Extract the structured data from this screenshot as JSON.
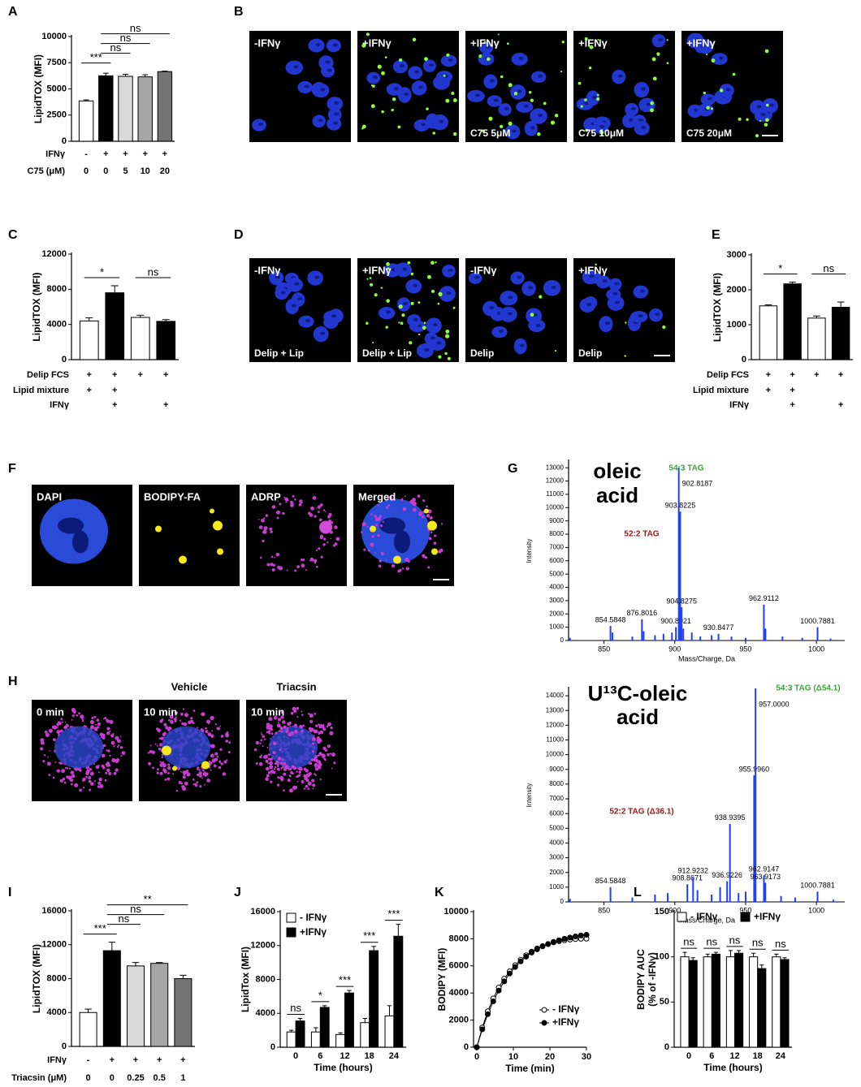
{
  "chart_data": [
    {
      "panel": "A",
      "type": "bar",
      "ylabel": "LipidTOX (MFI)",
      "ylim": [
        0,
        10000
      ],
      "yticks": [
        0,
        2500,
        5000,
        7500,
        10000
      ],
      "values": [
        3850,
        6250,
        6200,
        6150,
        6650
      ],
      "errors": [
        100,
        250,
        200,
        200,
        50
      ],
      "colors": [
        "#ffffff",
        "#000000",
        "#d9d9d9",
        "#a6a6a6",
        "#737373"
      ],
      "conditions": [
        {
          "label": "IFNγ",
          "values": [
            "-",
            "+",
            "+",
            "+",
            "+"
          ]
        },
        {
          "label": "C75 (μM)",
          "values": [
            "0",
            "0",
            "5",
            "10",
            "20"
          ]
        }
      ],
      "significance": [
        {
          "from": 0,
          "to": 1,
          "label": "***"
        },
        {
          "from": 1,
          "to": 2,
          "label": "ns"
        },
        {
          "from": 1,
          "to": 3,
          "label": "ns"
        },
        {
          "from": 1,
          "to": 4,
          "label": "ns"
        }
      ]
    },
    {
      "panel": "C",
      "type": "bar",
      "ylabel": "LipidTOX (MFI)",
      "ylim": [
        0,
        12000
      ],
      "yticks": [
        0,
        4000,
        8000,
        12000
      ],
      "values": [
        4400,
        7600,
        4800,
        4350
      ],
      "errors": [
        350,
        800,
        250,
        200
      ],
      "colors": [
        "#ffffff",
        "#000000",
        "#ffffff",
        "#000000"
      ],
      "conditions": [
        {
          "label": "Delip FCS",
          "values": [
            "+",
            "+",
            "+",
            "+"
          ]
        },
        {
          "label": "Lipid mixture",
          "values": [
            "+",
            "+",
            null,
            null
          ]
        },
        {
          "label": "IFNγ",
          "values": [
            null,
            "+",
            null,
            "+"
          ]
        }
      ],
      "significance": [
        {
          "from": 0,
          "to": 1,
          "label": "*"
        },
        {
          "from": 2,
          "to": 3,
          "label": "ns"
        }
      ]
    },
    {
      "panel": "E",
      "type": "bar",
      "ylabel": "LipidTOX (MFI)",
      "ylim": [
        0,
        3000
      ],
      "yticks": [
        0,
        1000,
        2000,
        3000
      ],
      "values": [
        1540,
        2170,
        1190,
        1500
      ],
      "errors": [
        30,
        50,
        60,
        150
      ],
      "colors": [
        "#ffffff",
        "#000000",
        "#ffffff",
        "#000000"
      ],
      "conditions": [
        {
          "label": "Delip FCS",
          "values": [
            "+",
            "+",
            "+",
            "+"
          ]
        },
        {
          "label": "Lipid mixture",
          "values": [
            "+",
            "+",
            null,
            null
          ]
        },
        {
          "label": "IFNγ",
          "values": [
            null,
            "+",
            null,
            "+"
          ]
        }
      ],
      "significance": [
        {
          "from": 0,
          "to": 1,
          "label": "*"
        },
        {
          "from": 2,
          "to": 3,
          "label": "ns"
        }
      ]
    },
    {
      "panel": "G",
      "type": "spectrum",
      "title_lines": [
        "oleic",
        "acid"
      ],
      "xlabel": "Mass/Charge, Da",
      "ylabel": "Intensity",
      "color": "#1f3fff",
      "xlim": [
        825,
        1020
      ],
      "xticks": [
        850,
        900,
        950,
        1000
      ],
      "ylim": [
        0,
        13500
      ],
      "yticks": [
        0,
        1000,
        2000,
        3000,
        4000,
        5000,
        6000,
        7000,
        8000,
        9000,
        10000,
        11000,
        12000,
        13000
      ],
      "x": [
        826,
        854.5848,
        856,
        870,
        876.8016,
        878,
        886,
        892,
        898,
        900.8021,
        902.8187,
        903.8225,
        904.8275,
        906,
        912,
        918,
        926,
        930.8477,
        940,
        950,
        962.9112,
        964,
        976,
        990,
        1000.7881,
        1010
      ],
      "values": [
        200,
        1100,
        600,
        300,
        1600,
        700,
        400,
        500,
        600,
        1000,
        13000,
        9700,
        2500,
        900,
        600,
        300,
        400,
        500,
        300,
        200,
        2700,
        900,
        300,
        200,
        1000,
        150
      ],
      "x_labels": [
        null,
        "854.5848",
        null,
        null,
        "876.8016",
        null,
        null,
        null,
        null,
        "900.8021",
        "902.8187",
        "903.8225",
        "904.8275",
        null,
        null,
        null,
        null,
        "930.8477",
        null,
        null,
        "962.9112",
        null,
        null,
        null,
        "1000.7881",
        null
      ],
      "annotations": [
        {
          "text": "54:3 TAG",
          "color": "#3aa63a"
        },
        {
          "text": "52:2 TAG",
          "color": "#a01818"
        }
      ]
    },
    {
      "type": "spectrum",
      "title_lines": [
        "U¹³C-oleic",
        "acid"
      ],
      "xlabel": "Mass/Charge, Da",
      "ylabel": "Intensity",
      "color": "#1f3fff",
      "xlim": [
        825,
        1020
      ],
      "xticks": [
        850,
        900,
        950,
        1000
      ],
      "ylim": [
        0,
        14500
      ],
      "yticks": [
        0,
        1000,
        2000,
        3000,
        4000,
        5000,
        6000,
        7000,
        8000,
        9000,
        10000,
        11000,
        12000,
        13000,
        14000
      ],
      "x": [
        826,
        854.5848,
        870,
        886,
        895,
        908.8671,
        912.9232,
        916,
        926,
        932,
        936.9226,
        938.9395,
        945,
        950,
        955.996,
        957,
        962.9147,
        963.9173,
        975,
        985,
        1000.7881,
        1012
      ],
      "values": [
        200,
        1000,
        300,
        500,
        600,
        1200,
        1700,
        800,
        500,
        1000,
        1400,
        5300,
        600,
        700,
        8600,
        14500,
        1800,
        1300,
        400,
        300,
        700,
        150
      ],
      "x_labels": [
        null,
        "854.5848",
        null,
        null,
        null,
        "908.8671",
        "912.9232",
        null,
        null,
        null,
        "936.9226",
        "938.9395",
        null,
        null,
        "955.9960",
        "957.0000",
        "962.9147",
        "963.9173",
        null,
        null,
        "1000.7881",
        null
      ],
      "annotations": [
        {
          "text": "54:3 TAG (Δ54.1)",
          "color": "#3aa63a"
        },
        {
          "text": "52:2 TAG  (Δ36.1)",
          "color": "#a01818"
        }
      ]
    },
    {
      "panel": "I",
      "type": "bar",
      "ylabel": "LipidTOX (MFI)",
      "ylim": [
        0,
        16000
      ],
      "yticks": [
        0,
        4000,
        8000,
        12000,
        16000
      ],
      "values": [
        4000,
        11300,
        9500,
        9800,
        8000
      ],
      "errors": [
        400,
        1000,
        400,
        100,
        400
      ],
      "colors": [
        "#ffffff",
        "#000000",
        "#d9d9d9",
        "#a6a6a6",
        "#737373"
      ],
      "conditions": [
        {
          "label": "IFNγ",
          "values": [
            "-",
            "+",
            "+",
            "+",
            "+"
          ]
        },
        {
          "label": "Triacsin (μM)",
          "values": [
            "0",
            "0",
            "0.25",
            "0.5",
            "1"
          ]
        }
      ],
      "significance": [
        {
          "from": 0,
          "to": 1,
          "label": "***"
        },
        {
          "from": 1,
          "to": 2,
          "label": "ns"
        },
        {
          "from": 1,
          "to": 3,
          "label": "ns"
        },
        {
          "from": 1,
          "to": 4,
          "label": "**"
        }
      ]
    },
    {
      "panel": "J",
      "type": "grouped_bar",
      "ylabel": "LipidTox (MFI)",
      "xlabel": "Time (hours)",
      "categories": [
        "0",
        "6",
        "12",
        "18",
        "24"
      ],
      "ylim": [
        0,
        16000
      ],
      "yticks": [
        0,
        4000,
        8000,
        12000,
        16000
      ],
      "legend": "upper left",
      "series": [
        {
          "name": "- IFNγ",
          "color": "#ffffff",
          "values": [
            1800,
            1800,
            1500,
            2900,
            3700
          ],
          "errors": [
            200,
            500,
            200,
            500,
            1200
          ]
        },
        {
          "name": "+IFNγ",
          "color": "#000000",
          "values": [
            3100,
            4700,
            6400,
            11400,
            13100
          ],
          "errors": [
            300,
            200,
            300,
            500,
            1400
          ]
        }
      ],
      "significance": [
        "ns",
        "*",
        "***",
        "***",
        "***"
      ]
    },
    {
      "panel": "K",
      "type": "line",
      "ylabel": "BODIPY (MFI)",
      "xlabel": "Time (min)",
      "xlim": [
        0,
        30
      ],
      "xticks": [
        0,
        10,
        20,
        30
      ],
      "ylim": [
        0,
        10000
      ],
      "yticks": [
        0,
        2000,
        4000,
        6000,
        8000,
        10000
      ],
      "legend": "lower right",
      "x": [
        0,
        1.5,
        3,
        4.5,
        6,
        7.5,
        9,
        10.5,
        12,
        13.5,
        15,
        16.5,
        18,
        19.5,
        21,
        22.5,
        24,
        25.5,
        27,
        28.5,
        30
      ],
      "series": [
        {
          "name": "- IFNγ",
          "color": "#000000",
          "marker": "open",
          "values": [
            0,
            1450,
            2650,
            3600,
            4400,
            5050,
            5600,
            6050,
            6450,
            6780,
            7050,
            7280,
            7460,
            7610,
            7730,
            7820,
            7890,
            7940,
            7980,
            8000,
            8010
          ]
        },
        {
          "name": "+IFNγ",
          "color": "#000000",
          "marker": "filled",
          "values": [
            0,
            1320,
            2440,
            3380,
            4180,
            4860,
            5440,
            5920,
            6330,
            6680,
            6980,
            7220,
            7440,
            7610,
            7770,
            7890,
            8000,
            8090,
            8170,
            8240,
            8290
          ]
        }
      ]
    },
    {
      "panel": "L",
      "type": "grouped_bar",
      "ylabel": [
        "BODIPY AUC",
        "(% of -IFNγ)"
      ],
      "xlabel": "Time (hours)",
      "categories": [
        "0",
        "6",
        "12",
        "18",
        "24"
      ],
      "ylim": [
        0,
        150
      ],
      "yticks": [
        0,
        50,
        100,
        150
      ],
      "legend": "upper center",
      "series": [
        {
          "name": "- IFNγ",
          "color": "#ffffff",
          "values": [
            100,
            100,
            100,
            100,
            100
          ],
          "errors": [
            5,
            3,
            7,
            4,
            3
          ]
        },
        {
          "name": "+IFNγ",
          "color": "#000000",
          "values": [
            96,
            103,
            104,
            87,
            97
          ],
          "errors": [
            3,
            2,
            3,
            4,
            2
          ]
        }
      ],
      "significance": [
        "ns",
        "ns",
        "ns",
        "ns",
        "ns"
      ]
    }
  ],
  "image_panels": [
    {
      "panel": "B",
      "images": [
        {
          "label": "-IFNγ"
        },
        {
          "label": "+IFNγ"
        },
        {
          "label": "+IFNγ",
          "caption": "C75 5μM"
        },
        {
          "label": "+IFNγ",
          "caption": "C75 10μM"
        },
        {
          "label": "+IFNγ",
          "caption": "C75 20μM"
        }
      ]
    },
    {
      "panel": "D",
      "images": [
        {
          "label": "-IFNγ",
          "caption": "Delip + Lip"
        },
        {
          "label": "+IFNγ",
          "caption": "Delip + Lip"
        },
        {
          "label": "-IFNγ",
          "caption": "Delip"
        },
        {
          "label": "+IFNγ",
          "caption": "Delip"
        }
      ]
    },
    {
      "panel": "F",
      "images": [
        {
          "label": "DAPI"
        },
        {
          "label": "BODIPY-FA"
        },
        {
          "label": "ADRP"
        },
        {
          "label": "Merged"
        }
      ]
    },
    {
      "panel": "H",
      "images": [
        {
          "label": "0 min"
        },
        {
          "header": "Vehicle",
          "label": "10 min"
        },
        {
          "header": "Triacsin",
          "label": "10 min"
        }
      ]
    }
  ]
}
